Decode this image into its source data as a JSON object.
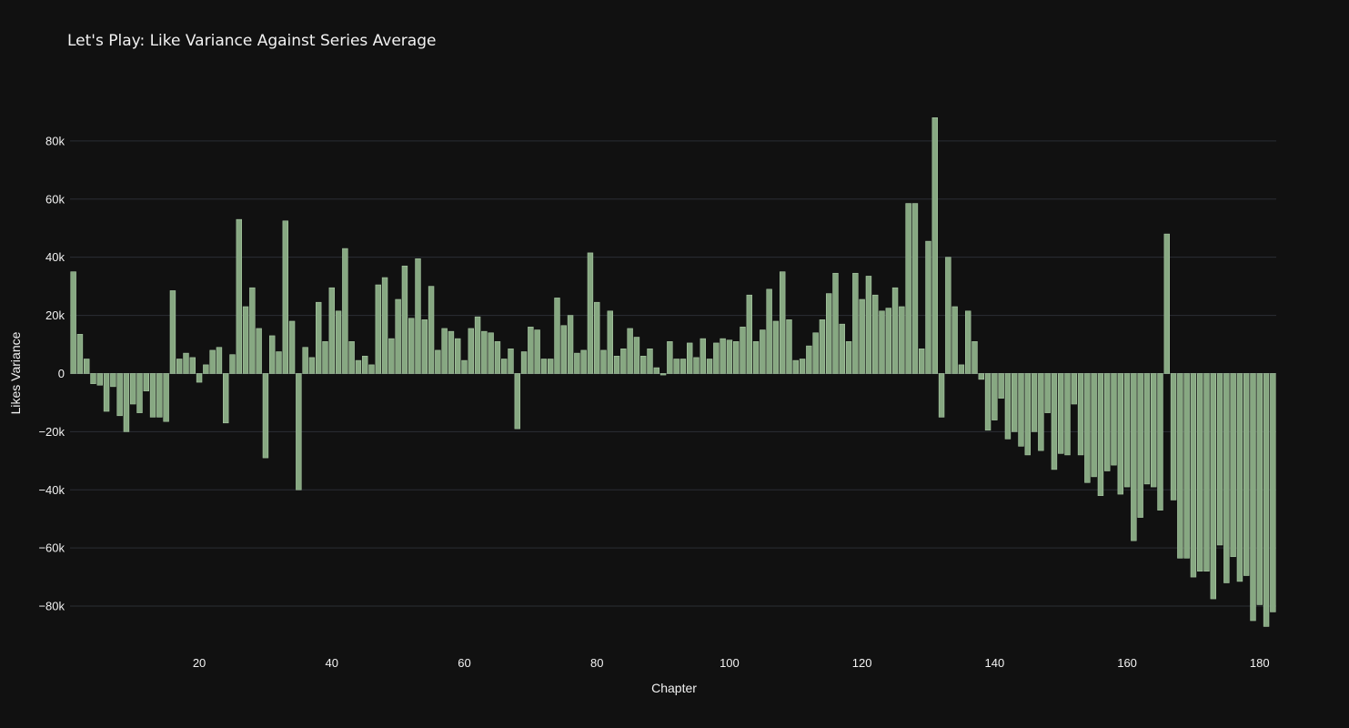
{
  "chart_data": {
    "type": "bar",
    "title": "Let's Play: Like Variance Against Series Average",
    "xlabel": "Chapter",
    "ylabel": "Likes Variance",
    "bar_color": "#87a882",
    "background": "#111111",
    "grid": true,
    "xlim": [
      0.5,
      182.5
    ],
    "ylim": [
      -90000,
      100000
    ],
    "x_ticks": [
      20,
      40,
      60,
      80,
      100,
      120,
      140,
      160,
      180
    ],
    "x_tick_labels": [
      "20",
      "40",
      "60",
      "80",
      "100",
      "120",
      "140",
      "160",
      "180"
    ],
    "y_ticks": [
      -80000,
      -60000,
      -40000,
      -20000,
      0,
      20000,
      40000,
      60000,
      80000
    ],
    "y_tick_labels": [
      "−80k",
      "−60k",
      "−40k",
      "−20k",
      "0",
      "20k",
      "40k",
      "60k",
      "80k"
    ],
    "x_start": 1,
    "values": [
      35000,
      13500,
      5000,
      -3500,
      -4000,
      -13000,
      -4500,
      -14500,
      -20000,
      -10500,
      -13500,
      -6000,
      -15000,
      -15000,
      -16500,
      28500,
      5000,
      7000,
      5500,
      -3000,
      3000,
      8000,
      9000,
      -17000,
      6500,
      53000,
      23000,
      29500,
      15500,
      -29000,
      13000,
      7500,
      52500,
      18000,
      -40000,
      9000,
      5500,
      24500,
      11000,
      29500,
      21500,
      43000,
      11000,
      4500,
      6000,
      3000,
      30500,
      33000,
      12000,
      25500,
      37000,
      19000,
      39500,
      18500,
      30000,
      8000,
      15500,
      14500,
      12000,
      4500,
      15500,
      19500,
      14500,
      14000,
      11000,
      5000,
      8500,
      -19000,
      7500,
      16000,
      15000,
      5000,
      5000,
      26000,
      16500,
      20000,
      7000,
      8000,
      41500,
      24500,
      8000,
      21500,
      6000,
      8500,
      15500,
      12500,
      6000,
      8500,
      2000,
      -500,
      11000,
      5000,
      5000,
      10500,
      5500,
      12000,
      5000,
      10500,
      12000,
      11500,
      11000,
      16000,
      27000,
      11000,
      15000,
      29000,
      18000,
      35000,
      18500,
      4500,
      5000,
      9500,
      14000,
      18500,
      27500,
      34500,
      17000,
      11000,
      34500,
      25500,
      33500,
      27000,
      21500,
      22500,
      29500,
      23000,
      58500,
      58500,
      8500,
      45500,
      88000,
      -15000,
      40000,
      23000,
      3000,
      21500,
      11000,
      -2000,
      -19500,
      -16000,
      -8500,
      -22500,
      -20000,
      -25000,
      -28000,
      -20000,
      -26500,
      -13500,
      -33000,
      -27500,
      -28000,
      -10500,
      -28000,
      -37500,
      -35500,
      -42000,
      -33500,
      -31500,
      -41500,
      -39000,
      -57500,
      -49500,
      -38000,
      -39000,
      -47000,
      48000,
      -43500,
      -63500,
      -63500,
      -70000,
      -68000,
      -68000,
      -77500,
      -59000,
      -72000,
      -63000,
      -71500,
      -69500,
      -85000,
      -79500,
      -87000,
      -82000
    ]
  }
}
